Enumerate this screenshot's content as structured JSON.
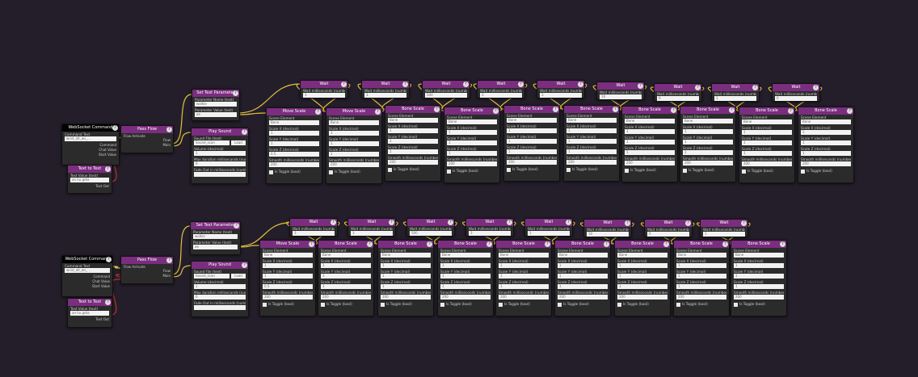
{
  "accent_colors": {
    "header": "#7b2d7f",
    "command_header": "#000000",
    "wire": "#e0c43a",
    "wire_red": "#b8322d",
    "background": "#241e2b"
  },
  "help_icon": "?",
  "cmd1": {
    "title": "WebSocket Command",
    "field_label": "Command Text",
    "value": "wrist_alt_ws_...",
    "outputs": [
      "Command",
      "Chat Value",
      "Start Value"
    ]
  },
  "cmd2": {
    "title": "WebSocket Command",
    "field_label": "Command Text",
    "value": "wrist_alt_ws_...",
    "outputs": [
      "Command",
      "Chat Value",
      "Start Value"
    ]
  },
  "text1": {
    "title": "Text to Text",
    "field_label": "Text Value (text)",
    "value": "ae hu geta",
    "output": "Text Out"
  },
  "text2": {
    "title": "Text to Text",
    "field_label": "Text Value (text)",
    "value": "ae hu geta",
    "output": "Text Out"
  },
  "pass1": {
    "title": "Pass Flow",
    "inputs": [
      "Flow Activate"
    ],
    "outputs": [
      "Flow",
      "Main"
    ]
  },
  "pass2": {
    "title": "Pass Flow",
    "inputs": [
      "Flow Activate"
    ],
    "outputs": [
      "Flow",
      "Main"
    ]
  },
  "settext1": {
    "title": "Set Text Parameter",
    "fields": [
      {
        "label": "Parameter Name (text)",
        "value": "walkie"
      },
      {
        "label": "Parameter Value (text)",
        "value": "ae"
      }
    ]
  },
  "settext2": {
    "title": "Set Text Parameter",
    "fields": [
      {
        "label": "Parameter Name (text)",
        "value": "walkie"
      },
      {
        "label": "Parameter Value (text)",
        "value": "ae"
      }
    ]
  },
  "sound1": {
    "title": "Play Sound",
    "fields": [
      {
        "label": "Sound File (text)",
        "value": "Sound_scan"
      },
      {
        "label": "Volume (decimal)",
        "value": "1"
      },
      {
        "label": "Max duration milliseconds (number)",
        "value": "0"
      },
      {
        "label": "Fade Out in milliseconds (number)",
        "value": ""
      }
    ],
    "button": "Load"
  },
  "sound2": {
    "title": "Play Sound",
    "fields": [
      {
        "label": "Sound File (text)",
        "value": "Sound_scan"
      },
      {
        "label": "Volume (decimal)",
        "value": "1"
      },
      {
        "label": "Max duration milliseconds (number)",
        "value": "0"
      },
      {
        "label": "Fade Out in milliseconds (number)",
        "value": ""
      }
    ],
    "button": "Load"
  },
  "wait_title": "Wait",
  "wait_label": "Wait milliseconds (number)",
  "row1_waits": [
    "3",
    "3",
    "500",
    "3",
    "3",
    "10",
    "0",
    "1",
    "0"
  ],
  "row2_waits": [
    "3",
    "3",
    "500",
    "3",
    "3",
    "10",
    "0",
    "1"
  ],
  "row1_scales": [
    {
      "title": "Move Scale",
      "fields": [
        {
          "label": "Scene Element",
          "value": "Bone"
        },
        {
          "label": "Scale X (decimal)",
          "value": "1"
        },
        {
          "label": "Scale Y (decimal)",
          "value": "1"
        },
        {
          "label": "Scale Z (decimal)",
          "value": "0.5"
        },
        {
          "label": "Smooth milliseconds (number)",
          "value": "200"
        }
      ],
      "check": "Is Toggle (bool)"
    },
    {
      "title": "Move Scale",
      "fields": [
        {
          "label": "Scene Element",
          "value": "Bone"
        },
        {
          "label": "Scale X (decimal)",
          "value": "1"
        },
        {
          "label": "Scale Y (decimal)",
          "value": "1"
        },
        {
          "label": "Scale Z (decimal)",
          "value": "1"
        },
        {
          "label": "Smooth milliseconds (number)",
          "value": "200"
        }
      ],
      "check": "Is Toggle (bool)"
    },
    {
      "title": "Bone Scale",
      "fields": [
        {
          "label": "Scene Element",
          "value": "Bone"
        },
        {
          "label": "Scale X (decimal)",
          "value": "1"
        },
        {
          "label": "Scale Y (decimal)",
          "value": "1"
        },
        {
          "label": "Scale Z (decimal)",
          "value": "1"
        },
        {
          "label": "Smooth milliseconds (number)",
          "value": "200"
        }
      ],
      "check": "Is Toggle (bool)"
    },
    {
      "title": "Bone Scale",
      "fields": [
        {
          "label": "Scene Element",
          "value": "Bone"
        },
        {
          "label": "Scale X (decimal)",
          "value": "1"
        },
        {
          "label": "Scale Y (decimal)",
          "value": "1"
        },
        {
          "label": "Scale Z (decimal)",
          "value": "1"
        },
        {
          "label": "Smooth milliseconds (number)",
          "value": "200"
        }
      ],
      "check": "Is Toggle (bool)"
    },
    {
      "title": "Bone Scale",
      "fields": [
        {
          "label": "Scene Element",
          "value": "Bone"
        },
        {
          "label": "Scale X (decimal)",
          "value": "1"
        },
        {
          "label": "Scale Y (decimal)",
          "value": "1"
        },
        {
          "label": "Scale Z (decimal)",
          "value": "1"
        },
        {
          "label": "Smooth milliseconds (number)",
          "value": "200"
        }
      ],
      "check": "Is Toggle (bool)"
    },
    {
      "title": "Bone Scale",
      "fields": [
        {
          "label": "Scene Element",
          "value": "Bone"
        },
        {
          "label": "Scale X (decimal)",
          "value": "1"
        },
        {
          "label": "Scale Y (decimal)",
          "value": "1"
        },
        {
          "label": "Scale Z (decimal)",
          "value": "1"
        },
        {
          "label": "Smooth milliseconds (number)",
          "value": "200"
        }
      ],
      "check": "Is Toggle (bool)"
    },
    {
      "title": "Bone Scale",
      "fields": [
        {
          "label": "Scene Element",
          "value": "Bone"
        },
        {
          "label": "Scale X (decimal)",
          "value": "1"
        },
        {
          "label": "Scale Y (decimal)",
          "value": "1"
        },
        {
          "label": "Scale Z (decimal)",
          "value": "1"
        },
        {
          "label": "Smooth milliseconds (number)",
          "value": "200"
        }
      ],
      "check": "Is Toggle (bool)"
    },
    {
      "title": "Bone Scale",
      "fields": [
        {
          "label": "Scene Element",
          "value": "Bone"
        },
        {
          "label": "Scale X (decimal)",
          "value": "1"
        },
        {
          "label": "Scale Y (decimal)",
          "value": "1"
        },
        {
          "label": "Scale Z (decimal)",
          "value": "1"
        },
        {
          "label": "Smooth milliseconds (number)",
          "value": "200"
        }
      ],
      "check": "Is Toggle (bool)"
    },
    {
      "title": "Bone Scale",
      "fields": [
        {
          "label": "Scene Element",
          "value": "Bone"
        },
        {
          "label": "Scale X (decimal)",
          "value": "1"
        },
        {
          "label": "Scale Y (decimal)",
          "value": "1"
        },
        {
          "label": "Scale Z (decimal)",
          "value": "1"
        },
        {
          "label": "Smooth milliseconds (number)",
          "value": "200"
        }
      ],
      "check": "Is Toggle (bool)"
    },
    {
      "title": "Bone Scale",
      "fields": [
        {
          "label": "Scene Element",
          "value": "Bone"
        },
        {
          "label": "Scale X (decimal)",
          "value": "1"
        },
        {
          "label": "Scale Y (decimal)",
          "value": "1"
        },
        {
          "label": "Scale Z (decimal)",
          "value": "1"
        },
        {
          "label": "Smooth milliseconds (number)",
          "value": "200"
        }
      ],
      "check": "Is Toggle (bool)"
    }
  ],
  "row2_scales": [
    {
      "title": "Move Scale",
      "fields": [
        {
          "label": "Scene Element",
          "value": "Bone"
        },
        {
          "label": "Scale X (decimal)",
          "value": "1"
        },
        {
          "label": "Scale Y (decimal)",
          "value": "1"
        },
        {
          "label": "Scale Z (decimal)",
          "value": "0.5"
        },
        {
          "label": "Smooth milliseconds (number)",
          "value": "200"
        }
      ],
      "check": "Is Toggle (bool)"
    },
    {
      "title": "Bone Scale",
      "fields": [
        {
          "label": "Scene Element",
          "value": "Bone"
        },
        {
          "label": "Scale X (decimal)",
          "value": "1"
        },
        {
          "label": "Scale Y (decimal)",
          "value": "1"
        },
        {
          "label": "Scale Z (decimal)",
          "value": "1"
        },
        {
          "label": "Smooth milliseconds (number)",
          "value": "200"
        }
      ],
      "check": "Is Toggle (bool)"
    },
    {
      "title": "Bone Scale",
      "fields": [
        {
          "label": "Scene Element",
          "value": "Bone"
        },
        {
          "label": "Scale X (decimal)",
          "value": "1"
        },
        {
          "label": "Scale Y (decimal)",
          "value": "1"
        },
        {
          "label": "Scale Z (decimal)",
          "value": "1"
        },
        {
          "label": "Smooth milliseconds (number)",
          "value": "200"
        }
      ],
      "check": "Is Toggle (bool)"
    },
    {
      "title": "Bone Scale",
      "fields": [
        {
          "label": "Scene Element",
          "value": "Bone"
        },
        {
          "label": "Scale X (decimal)",
          "value": "1"
        },
        {
          "label": "Scale Y (decimal)",
          "value": "1"
        },
        {
          "label": "Scale Z (decimal)",
          "value": "1"
        },
        {
          "label": "Smooth milliseconds (number)",
          "value": "200"
        }
      ],
      "check": "Is Toggle (bool)"
    },
    {
      "title": "Bone Scale",
      "fields": [
        {
          "label": "Scene Element",
          "value": "Bone"
        },
        {
          "label": "Scale X (decimal)",
          "value": "1"
        },
        {
          "label": "Scale Y (decimal)",
          "value": "1"
        },
        {
          "label": "Scale Z (decimal)",
          "value": "1"
        },
        {
          "label": "Smooth milliseconds (number)",
          "value": "200"
        }
      ],
      "check": "Is Toggle (bool)"
    },
    {
      "title": "Bone Scale",
      "fields": [
        {
          "label": "Scene Element",
          "value": "Bone"
        },
        {
          "label": "Scale X (decimal)",
          "value": "1"
        },
        {
          "label": "Scale Y (decimal)",
          "value": "1"
        },
        {
          "label": "Scale Z (decimal)",
          "value": "1"
        },
        {
          "label": "Smooth milliseconds (number)",
          "value": "200"
        }
      ],
      "check": "Is Toggle (bool)"
    },
    {
      "title": "Bone Scale",
      "fields": [
        {
          "label": "Scene Element",
          "value": "Bone"
        },
        {
          "label": "Scale X (decimal)",
          "value": "1"
        },
        {
          "label": "Scale Y (decimal)",
          "value": "1"
        },
        {
          "label": "Scale Z (decimal)",
          "value": "1"
        },
        {
          "label": "Smooth milliseconds (number)",
          "value": "200"
        }
      ],
      "check": "Is Toggle (bool)"
    },
    {
      "title": "Bone Scale",
      "fields": [
        {
          "label": "Scene Element",
          "value": "Bone"
        },
        {
          "label": "Scale X (decimal)",
          "value": "1"
        },
        {
          "label": "Scale Y (decimal)",
          "value": "1"
        },
        {
          "label": "Scale Z (decimal)",
          "value": "1"
        },
        {
          "label": "Smooth milliseconds (number)",
          "value": "200"
        }
      ],
      "check": "Is Toggle (bool)"
    },
    {
      "title": "Bone Scale",
      "fields": [
        {
          "label": "Scene Element",
          "value": "Bone"
        },
        {
          "label": "Scale X (decimal)",
          "value": "1"
        },
        {
          "label": "Scale Y (decimal)",
          "value": "1"
        },
        {
          "label": "Scale Z (decimal)",
          "value": "1"
        },
        {
          "label": "Smooth milliseconds (number)",
          "value": "200"
        }
      ],
      "check": "Is Toggle (bool)"
    }
  ]
}
